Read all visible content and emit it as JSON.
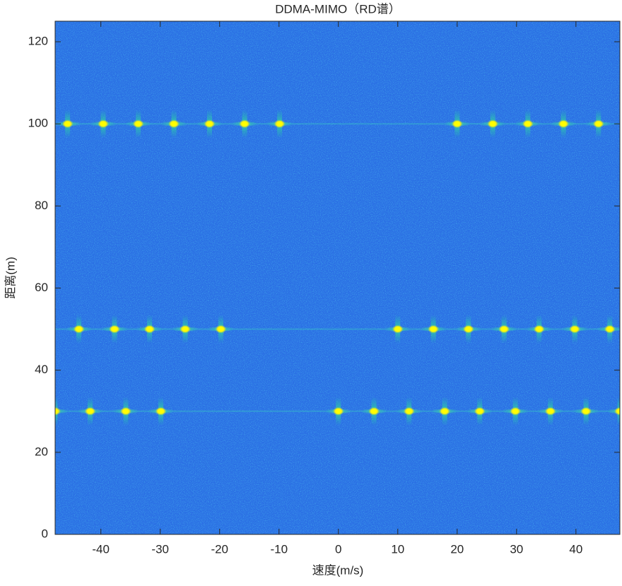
{
  "chart_data": {
    "type": "scatter",
    "title": "DDMA-MIMO（RD谱）",
    "x_label": "速度(m/s)",
    "y_label": "距离(m)",
    "x": [
      -45.6,
      -39.6,
      -33.7,
      -27.7,
      -21.7,
      -15.8,
      -9.9,
      20.0,
      26.0,
      31.9,
      37.9,
      43.8,
      -43.7,
      -37.7,
      -31.8,
      -25.8,
      -19.8,
      10.0,
      16.0,
      21.9,
      27.9,
      33.8,
      39.8,
      45.7,
      -47.7,
      -41.8,
      -35.8,
      -29.9,
      0.0,
      6.0,
      11.9,
      17.9,
      23.8,
      29.8,
      35.7,
      41.7,
      47.4
    ],
    "y": [
      100,
      100,
      100,
      100,
      100,
      100,
      100,
      100,
      100,
      100,
      100,
      100,
      50,
      50,
      50,
      50,
      50,
      50,
      50,
      50,
      50,
      50,
      50,
      50,
      30,
      30,
      30,
      30,
      30,
      30,
      30,
      30,
      30,
      30,
      30,
      30,
      30
    ],
    "color": "#ffff00",
    "background_color": "#2b70e4",
    "xlim": [
      -47.7,
      47.4
    ],
    "xticks": [
      -40,
      -30,
      -20,
      -10,
      0,
      10,
      20,
      30,
      40
    ],
    "ylim": [
      0,
      125
    ],
    "yticks": [
      0,
      20,
      40,
      60,
      80,
      100,
      120
    ]
  }
}
